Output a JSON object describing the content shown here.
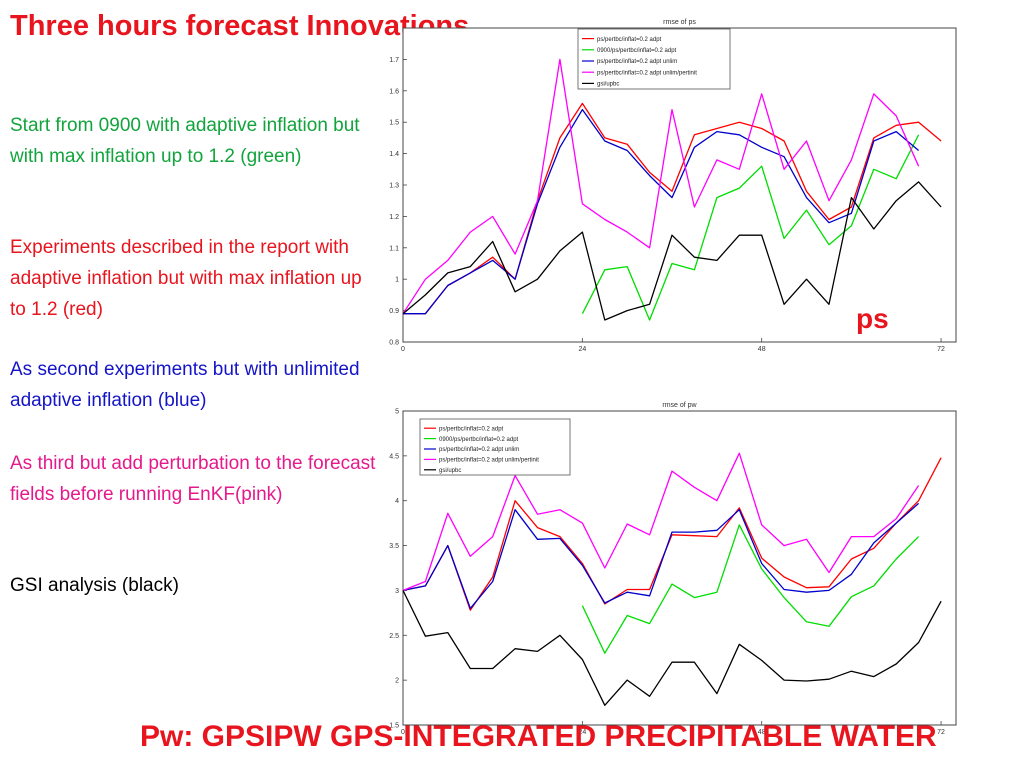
{
  "slide": {
    "title": "Three hours forecast Innovations",
    "paragraphs": {
      "green": "Start from 0900 with adaptive inflation but with max inflation up to 1.2 (green)",
      "red": "Experiments described in the report with adaptive inflation but with max inflation up to 1.2 (red)",
      "blue": "As second experiments but with unlimited adaptive inflation (blue)",
      "pink": "As third but add perturbation to the forecast fields before running EnKF(pink)",
      "black": "GSI analysis (black)"
    },
    "ps_label": "ps",
    "bottom_title": "Pw: GPSIPW GPS-INTEGRATED PRECIPITABLE WATER",
    "colors": {
      "red": "#ff0000",
      "green": "#00dd00",
      "blue": "#0000cc",
      "pink": "#ff00ff",
      "black": "#000000"
    }
  },
  "chart_data": [
    {
      "type": "line",
      "title": "rmse of ps",
      "xlim": [
        0,
        74
      ],
      "ylim": [
        0.8,
        1.8
      ],
      "xticks": [
        0,
        24,
        48,
        72
      ],
      "yticks": [
        0.8,
        0.9,
        1,
        1.1,
        1.2,
        1.3,
        1.4,
        1.5,
        1.6,
        1.7
      ],
      "legend_position": "top-right",
      "series": [
        {
          "name": "ps/pertbc/inflat=0.2 adpt",
          "color": "#ff0000",
          "x": [
            0,
            3,
            6,
            9,
            12,
            15,
            18,
            21,
            24,
            27,
            30,
            33,
            36,
            39,
            42,
            45,
            48,
            51,
            54,
            57,
            60,
            63,
            66,
            69,
            72
          ],
          "y": [
            0.89,
            0.89,
            0.98,
            1.02,
            1.07,
            1.0,
            1.25,
            1.45,
            1.56,
            1.45,
            1.43,
            1.34,
            1.28,
            1.46,
            1.48,
            1.5,
            1.48,
            1.44,
            1.28,
            1.19,
            1.23,
            1.45,
            1.49,
            1.5,
            1.44
          ]
        },
        {
          "name": "0900/ps/pertbc/inflat=0.2 adpt",
          "color": "#00dd00",
          "x": [
            24,
            27,
            30,
            33,
            36,
            39,
            42,
            45,
            48,
            51,
            54,
            57,
            60,
            63,
            66,
            69
          ],
          "y": [
            0.89,
            1.03,
            1.04,
            0.87,
            1.05,
            1.03,
            1.26,
            1.29,
            1.36,
            1.13,
            1.22,
            1.11,
            1.17,
            1.35,
            1.32,
            1.46
          ]
        },
        {
          "name": "ps/pertbc/inflat=0.2 adpt unlim",
          "color": "#0000cc",
          "x": [
            0,
            3,
            6,
            9,
            12,
            15,
            18,
            21,
            24,
            27,
            30,
            33,
            36,
            39,
            42,
            45,
            48,
            51,
            54,
            57,
            60,
            63,
            66,
            69
          ],
          "y": [
            0.89,
            0.89,
            0.98,
            1.02,
            1.06,
            1.0,
            1.24,
            1.42,
            1.54,
            1.44,
            1.41,
            1.33,
            1.26,
            1.42,
            1.47,
            1.46,
            1.42,
            1.39,
            1.26,
            1.18,
            1.21,
            1.44,
            1.47,
            1.41
          ]
        },
        {
          "name": "ps/pertbc/inflat=0.2 adpt unlim/pertinit",
          "color": "#ff00ff",
          "x": [
            0,
            3,
            6,
            9,
            12,
            15,
            18,
            21,
            24,
            27,
            30,
            33,
            36,
            39,
            42,
            45,
            48,
            51,
            54,
            57,
            60,
            63,
            66,
            69
          ],
          "y": [
            0.89,
            1.0,
            1.06,
            1.15,
            1.2,
            1.08,
            1.25,
            1.7,
            1.24,
            1.19,
            1.15,
            1.1,
            1.54,
            1.23,
            1.38,
            1.35,
            1.59,
            1.35,
            1.44,
            1.25,
            1.38,
            1.59,
            1.52,
            1.36
          ]
        },
        {
          "name": "gsi/upbc",
          "color": "#000000",
          "x": [
            0,
            3,
            6,
            9,
            12,
            15,
            18,
            21,
            24,
            27,
            30,
            33,
            36,
            39,
            42,
            45,
            48,
            51,
            54,
            57,
            60,
            63,
            66,
            69,
            72
          ],
          "y": [
            0.89,
            0.95,
            1.02,
            1.04,
            1.12,
            0.96,
            1.0,
            1.09,
            1.15,
            0.87,
            0.9,
            0.92,
            1.14,
            1.07,
            1.06,
            1.14,
            1.14,
            0.92,
            1.0,
            0.92,
            1.26,
            1.16,
            1.25,
            1.31,
            1.23
          ]
        }
      ]
    },
    {
      "type": "line",
      "title": "rmse of pw",
      "xlim": [
        0,
        74
      ],
      "ylim": [
        1.5,
        5
      ],
      "xticks": [
        0,
        24,
        48,
        72
      ],
      "yticks": [
        1.5,
        2,
        2.5,
        3,
        3.5,
        4,
        4.5,
        5
      ],
      "legend_position": "top-left",
      "series": [
        {
          "name": "ps/pertbc/inflat=0.2 adpt",
          "color": "#ff0000",
          "x": [
            0,
            3,
            6,
            9,
            12,
            15,
            18,
            21,
            24,
            27,
            30,
            33,
            36,
            39,
            42,
            45,
            48,
            51,
            54,
            57,
            60,
            63,
            66,
            69,
            72
          ],
          "y": [
            3.0,
            3.05,
            3.5,
            2.78,
            3.15,
            4.0,
            3.7,
            3.6,
            3.3,
            2.85,
            3.01,
            3.01,
            3.62,
            3.61,
            3.6,
            3.92,
            3.36,
            3.15,
            3.03,
            3.04,
            3.35,
            3.47,
            3.75,
            4.0,
            4.48
          ]
        },
        {
          "name": "0900/ps/pertbc/inflat=0.2 adpt",
          "color": "#00dd00",
          "x": [
            24,
            27,
            30,
            33,
            36,
            39,
            42,
            45,
            48,
            51,
            54,
            57,
            60,
            63,
            66,
            69
          ],
          "y": [
            2.83,
            2.3,
            2.72,
            2.63,
            3.07,
            2.92,
            2.98,
            3.73,
            3.24,
            2.92,
            2.65,
            2.6,
            2.93,
            3.05,
            3.35,
            3.6
          ]
        },
        {
          "name": "ps/pertbc/inflat=0.2 adpt unlim",
          "color": "#0000cc",
          "x": [
            0,
            3,
            6,
            9,
            12,
            15,
            18,
            21,
            24,
            27,
            30,
            33,
            36,
            39,
            42,
            45,
            48,
            51,
            54,
            57,
            60,
            63,
            66,
            69
          ],
          "y": [
            3.0,
            3.05,
            3.5,
            2.8,
            3.1,
            3.9,
            3.57,
            3.58,
            3.28,
            2.86,
            2.98,
            2.94,
            3.65,
            3.65,
            3.67,
            3.9,
            3.3,
            3.01,
            2.98,
            3.0,
            3.18,
            3.53,
            3.75,
            3.97
          ]
        },
        {
          "name": "ps/pertbc/inflat=0.2 adpt unlim/pertinit",
          "color": "#ff00ff",
          "x": [
            0,
            3,
            6,
            9,
            12,
            15,
            18,
            21,
            24,
            27,
            30,
            33,
            36,
            39,
            42,
            45,
            48,
            51,
            54,
            57,
            60,
            63,
            66,
            69
          ],
          "y": [
            3.0,
            3.1,
            3.86,
            3.38,
            3.6,
            4.28,
            3.85,
            3.9,
            3.75,
            3.25,
            3.74,
            3.62,
            4.33,
            4.15,
            4.0,
            4.53,
            3.73,
            3.5,
            3.57,
            3.2,
            3.6,
            3.6,
            3.8,
            4.17
          ]
        },
        {
          "name": "gsi/upbc",
          "color": "#000000",
          "x": [
            0,
            3,
            6,
            9,
            12,
            15,
            18,
            21,
            24,
            27,
            30,
            33,
            36,
            39,
            42,
            45,
            48,
            51,
            54,
            57,
            60,
            63,
            66,
            69,
            72
          ],
          "y": [
            3.0,
            2.49,
            2.53,
            2.13,
            2.13,
            2.35,
            2.32,
            2.5,
            2.23,
            1.72,
            2.0,
            1.82,
            2.2,
            2.2,
            1.85,
            2.4,
            2.22,
            2.0,
            1.99,
            2.01,
            2.1,
            2.04,
            2.18,
            2.42,
            2.88
          ]
        }
      ]
    }
  ]
}
